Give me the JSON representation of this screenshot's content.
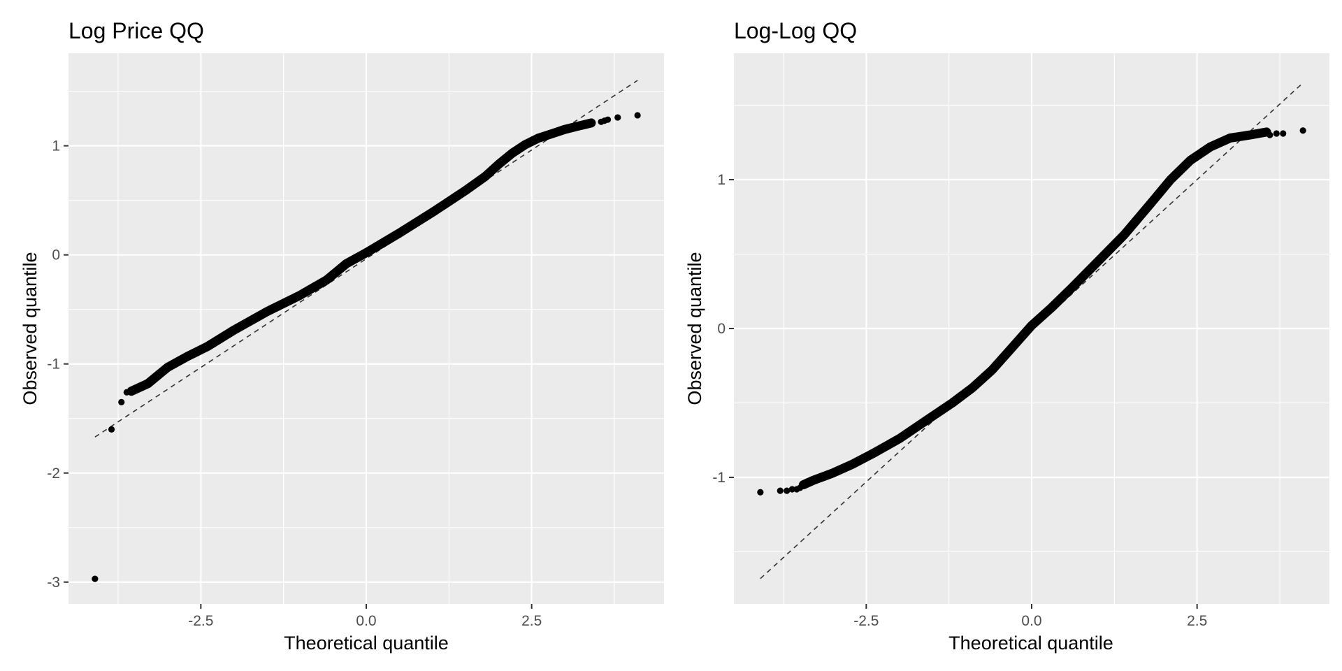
{
  "chart_data": [
    {
      "type": "scatter",
      "title": "Log Price QQ",
      "xlabel": "Theoretical quantile",
      "ylabel": "Observed quantile",
      "xlim": [
        -4.5,
        4.5
      ],
      "ylim": [
        -3.2,
        1.85
      ],
      "x_ticks": [
        -2.5,
        0.0,
        2.5
      ],
      "x_tick_labels": [
        "-2.5",
        "0.0",
        "2.5"
      ],
      "y_ticks": [
        -3,
        -2,
        -1,
        0,
        1
      ],
      "y_tick_labels": [
        "-3",
        "-2",
        "-1",
        "0",
        "1"
      ],
      "grid": true,
      "reference_line": {
        "x": [
          -4.1,
          4.1
        ],
        "y": [
          -1.67,
          1.6
        ]
      },
      "curve": {
        "x": [
          -3.55,
          -3.3,
          -3.0,
          -2.7,
          -2.4,
          -2.0,
          -1.5,
          -1.0,
          -0.6,
          -0.3,
          0.0,
          0.5,
          1.0,
          1.5,
          1.8,
          2.0,
          2.2,
          2.4,
          2.6,
          2.8,
          3.0,
          3.2,
          3.4
        ],
        "y": [
          -1.25,
          -1.18,
          -1.03,
          -0.93,
          -0.84,
          -0.69,
          -0.52,
          -0.37,
          -0.23,
          -0.08,
          0.02,
          0.2,
          0.39,
          0.59,
          0.72,
          0.83,
          0.93,
          1.01,
          1.07,
          1.11,
          1.15,
          1.18,
          1.21
        ]
      },
      "points": {
        "x": [
          -4.1,
          -3.85,
          -3.7,
          -3.62,
          3.55,
          3.6,
          3.65,
          3.8,
          4.1
        ],
        "y": [
          -2.97,
          -1.6,
          -1.35,
          -1.26,
          1.22,
          1.23,
          1.24,
          1.26,
          1.28
        ]
      }
    },
    {
      "type": "scatter",
      "title": "Log-Log QQ",
      "xlabel": "Theoretical quantile",
      "ylabel": "Observed quantile",
      "xlim": [
        -4.5,
        4.5
      ],
      "ylim": [
        -1.85,
        1.85
      ],
      "x_ticks": [
        -2.5,
        0.0,
        2.5
      ],
      "x_tick_labels": [
        "-2.5",
        "0.0",
        "2.5"
      ],
      "y_ticks": [
        -1,
        0,
        1
      ],
      "y_tick_labels": [
        "-1",
        "0",
        "1"
      ],
      "grid": true,
      "reference_line": {
        "x": [
          -4.1,
          4.1
        ],
        "y": [
          -1.68,
          1.65
        ]
      },
      "curve": {
        "x": [
          -3.45,
          -3.3,
          -3.0,
          -2.7,
          -2.4,
          -2.0,
          -1.6,
          -1.2,
          -0.9,
          -0.6,
          -0.3,
          0.0,
          0.3,
          0.6,
          1.0,
          1.4,
          1.8,
          2.1,
          2.4,
          2.7,
          3.0,
          3.3,
          3.55
        ],
        "y": [
          -1.05,
          -1.02,
          -0.97,
          -0.91,
          -0.84,
          -0.74,
          -0.62,
          -0.5,
          -0.4,
          -0.28,
          -0.13,
          0.02,
          0.14,
          0.27,
          0.45,
          0.63,
          0.84,
          1.0,
          1.13,
          1.22,
          1.28,
          1.3,
          1.32
        ]
      },
      "points": {
        "x": [
          -4.1,
          -3.8,
          -3.7,
          -3.62,
          -3.55,
          -3.5,
          3.6,
          3.7,
          3.8,
          4.1
        ],
        "y": [
          -1.1,
          -1.09,
          -1.09,
          -1.08,
          -1.08,
          -1.07,
          1.3,
          1.31,
          1.31,
          1.33
        ]
      }
    }
  ]
}
